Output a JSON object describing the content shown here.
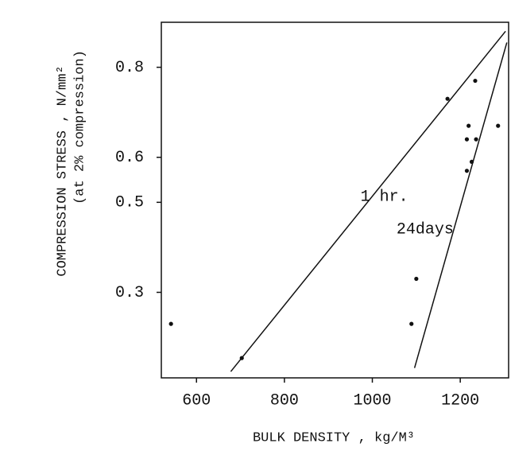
{
  "chart_data": {
    "type": "scatter",
    "xlabel": "BULK DENSITY , kg/M³",
    "ylabel": [
      "COMPRESSION STRESS , N/mm²",
      "(at 2% compression)"
    ],
    "xlim": [
      520,
      1310
    ],
    "ylim": [
      0.11,
      0.9
    ],
    "xticks": [
      600,
      800,
      1000,
      1200
    ],
    "yticks": [
      0.3,
      0.5,
      0.6,
      0.8
    ],
    "color": "#111111",
    "points": {
      "x": [
        542,
        703,
        1171,
        1234,
        1219,
        1215,
        1236,
        1226,
        1215,
        1286,
        1100,
        1089
      ],
      "y": [
        0.23,
        0.154,
        0.73,
        0.77,
        0.67,
        0.64,
        0.64,
        0.59,
        0.57,
        0.67,
        0.33,
        0.23
      ]
    },
    "series": [
      {
        "name": "1 hr.",
        "color": "#111111",
        "x": [
          678,
          1303
        ],
        "values": [
          0.124,
          0.88
        ]
      },
      {
        "name": "24days",
        "color": "#111111",
        "x": [
          1096,
          1306
        ],
        "values": [
          0.132,
          0.855
        ]
      }
    ]
  }
}
